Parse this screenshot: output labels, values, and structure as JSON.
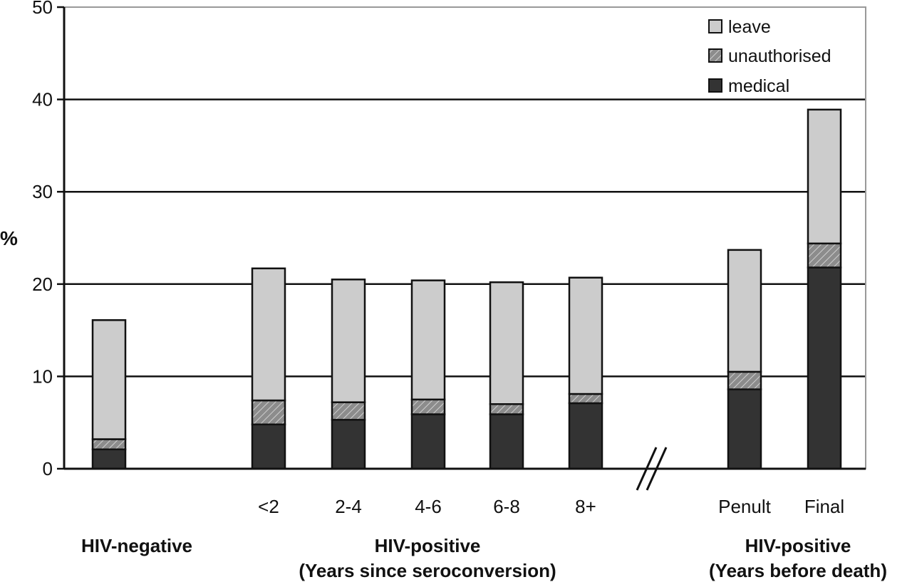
{
  "chart_data": {
    "type": "bar",
    "stacked": true,
    "ylabel": "%",
    "ylim": [
      0,
      50
    ],
    "yticks": [
      0,
      10,
      20,
      30,
      40,
      50
    ],
    "grid": true,
    "legend_position": "top-right",
    "categories": [
      "",
      "<2",
      "2-4",
      "4-6",
      "6-8",
      "8+",
      "Penult",
      "Final"
    ],
    "series": [
      {
        "name": "medical",
        "color": "#333333",
        "values": [
          2.1,
          4.8,
          5.3,
          5.9,
          5.9,
          7.1,
          8.6,
          21.8
        ]
      },
      {
        "name": "unauthorised",
        "color": "#8c8c8c",
        "pattern": "hatched",
        "values": [
          1.1,
          2.6,
          1.9,
          1.6,
          1.1,
          1.0,
          1.9,
          2.6
        ]
      },
      {
        "name": "leave",
        "color": "#cccccc",
        "values": [
          12.9,
          14.3,
          13.3,
          12.9,
          13.2,
          12.6,
          13.2,
          14.5
        ]
      }
    ],
    "groups": [
      {
        "label_line1": "HIV-negative",
        "label_line2": ""
      },
      {
        "label_line1": "HIV-positive",
        "label_line2": "(Years since seroconversion)"
      },
      {
        "label_line1": "HIV-positive",
        "label_line2": "(Years before death)"
      }
    ],
    "legend": [
      "leave",
      "unauthorised",
      "medical"
    ],
    "axis_break": true
  }
}
